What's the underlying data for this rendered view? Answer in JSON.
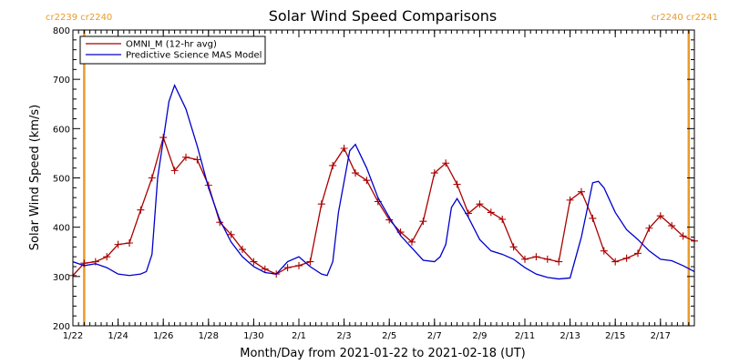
{
  "chart_data": {
    "type": "line",
    "title": "Solar Wind Speed Comparisons",
    "xlabel": "Month/Day from 2021-01-22 to 2021-02-18 (UT)",
    "ylabel": "Solar Wind Speed (km/s)",
    "ylim": [
      200,
      800
    ],
    "yticks": [
      200,
      300,
      400,
      500,
      600,
      700,
      800
    ],
    "xlim": [
      "2021-01-22",
      "2021-02-18 12:00"
    ],
    "xticks": [
      {
        "date": "2021-01-22",
        "label": "1/22"
      },
      {
        "date": "2021-01-24",
        "label": "1/24"
      },
      {
        "date": "2021-01-26",
        "label": "1/26"
      },
      {
        "date": "2021-01-28",
        "label": "1/28"
      },
      {
        "date": "2021-01-30",
        "label": "1/30"
      },
      {
        "date": "2021-02-01",
        "label": "2/1"
      },
      {
        "date": "2021-02-03",
        "label": "2/3"
      },
      {
        "date": "2021-02-05",
        "label": "2/5"
      },
      {
        "date": "2021-02-07",
        "label": "2/7"
      },
      {
        "date": "2021-02-09",
        "label": "2/9"
      },
      {
        "date": "2021-02-11",
        "label": "2/11"
      },
      {
        "date": "2021-02-13",
        "label": "2/13"
      },
      {
        "date": "2021-02-15",
        "label": "2/15"
      },
      {
        "date": "2021-02-17",
        "label": "2/17"
      }
    ],
    "legend_position": "top-left",
    "carrington_markers": [
      {
        "date": "2021-01-22 12:00",
        "label": "cr2239 cr2240",
        "side": "left"
      },
      {
        "date": "2021-02-18 06:00",
        "label": "cr2240 cr2241",
        "side": "right"
      }
    ],
    "series": [
      {
        "name": "OMNI_M (12-hr avg)",
        "color": "#aa0000",
        "marker": "plus",
        "points": [
          [
            "2021-01-22 00:00",
            302
          ],
          [
            "2021-01-22 12:00",
            327
          ],
          [
            "2021-01-23 00:00",
            330
          ],
          [
            "2021-01-23 12:00",
            340
          ],
          [
            "2021-01-24 00:00",
            365
          ],
          [
            "2021-01-24 12:00",
            368
          ],
          [
            "2021-01-25 00:00",
            435
          ],
          [
            "2021-01-25 12:00",
            500
          ],
          [
            "2021-01-26 00:00",
            582
          ],
          [
            "2021-01-26 12:00",
            515
          ],
          [
            "2021-01-27 00:00",
            542
          ],
          [
            "2021-01-27 12:00",
            537
          ],
          [
            "2021-01-28 00:00",
            485
          ],
          [
            "2021-01-28 12:00",
            410
          ],
          [
            "2021-01-29 00:00",
            385
          ],
          [
            "2021-01-29 12:00",
            355
          ],
          [
            "2021-01-30 00:00",
            330
          ],
          [
            "2021-01-30 12:00",
            315
          ],
          [
            "2021-01-31 00:00",
            305
          ],
          [
            "2021-01-31 12:00",
            318
          ],
          [
            "2021-02-01 00:00",
            322
          ],
          [
            "2021-02-01 12:00",
            330
          ],
          [
            "2021-02-02 00:00",
            447
          ],
          [
            "2021-02-02 12:00",
            525
          ],
          [
            "2021-02-03 00:00",
            560
          ],
          [
            "2021-02-03 12:00",
            510
          ],
          [
            "2021-02-04 00:00",
            495
          ],
          [
            "2021-02-04 12:00",
            452
          ],
          [
            "2021-02-05 00:00",
            415
          ],
          [
            "2021-02-05 12:00",
            390
          ],
          [
            "2021-02-06 00:00",
            370
          ],
          [
            "2021-02-06 12:00",
            412
          ],
          [
            "2021-02-07 00:00",
            510
          ],
          [
            "2021-02-07 12:00",
            530
          ],
          [
            "2021-02-08 00:00",
            487
          ],
          [
            "2021-02-08 12:00",
            428
          ],
          [
            "2021-02-09 00:00",
            447
          ],
          [
            "2021-02-09 12:00",
            430
          ],
          [
            "2021-02-10 00:00",
            416
          ],
          [
            "2021-02-10 12:00",
            360
          ],
          [
            "2021-02-11 00:00",
            335
          ],
          [
            "2021-02-11 12:00",
            340
          ],
          [
            "2021-02-12 00:00",
            335
          ],
          [
            "2021-02-12 12:00",
            330
          ],
          [
            "2021-02-13 00:00",
            455
          ],
          [
            "2021-02-13 12:00",
            472
          ],
          [
            "2021-02-14 00:00",
            418
          ],
          [
            "2021-02-14 12:00",
            352
          ],
          [
            "2021-02-15 00:00",
            330
          ],
          [
            "2021-02-15 12:00",
            337
          ],
          [
            "2021-02-16 00:00",
            347
          ],
          [
            "2021-02-16 12:00",
            398
          ],
          [
            "2021-02-17 00:00",
            423
          ],
          [
            "2021-02-17 12:00",
            403
          ],
          [
            "2021-02-18 00:00",
            382
          ],
          [
            "2021-02-18 12:00",
            372
          ]
        ]
      },
      {
        "name": "Predictive Science MAS Model",
        "color": "#0000cc",
        "marker": "none",
        "points": [
          [
            "2021-01-22 00:00",
            330
          ],
          [
            "2021-01-22 12:00",
            322
          ],
          [
            "2021-01-23 00:00",
            326
          ],
          [
            "2021-01-23 12:00",
            318
          ],
          [
            "2021-01-24 00:00",
            305
          ],
          [
            "2021-01-24 12:00",
            302
          ],
          [
            "2021-01-25 00:00",
            305
          ],
          [
            "2021-01-25 06:00",
            310
          ],
          [
            "2021-01-25 12:00",
            345
          ],
          [
            "2021-01-25 18:00",
            500
          ],
          [
            "2021-01-26 06:00",
            655
          ],
          [
            "2021-01-26 12:00",
            688
          ],
          [
            "2021-01-27 00:00",
            640
          ],
          [
            "2021-01-27 12:00",
            565
          ],
          [
            "2021-01-28 00:00",
            480
          ],
          [
            "2021-01-28 12:00",
            415
          ],
          [
            "2021-01-29 00:00",
            370
          ],
          [
            "2021-01-29 12:00",
            340
          ],
          [
            "2021-01-30 00:00",
            320
          ],
          [
            "2021-01-30 12:00",
            308
          ],
          [
            "2021-01-31 00:00",
            305
          ],
          [
            "2021-01-31 12:00",
            330
          ],
          [
            "2021-02-01 00:00",
            340
          ],
          [
            "2021-02-01 12:00",
            320
          ],
          [
            "2021-02-02 00:00",
            305
          ],
          [
            "2021-02-02 06:00",
            302
          ],
          [
            "2021-02-02 12:00",
            330
          ],
          [
            "2021-02-02 18:00",
            430
          ],
          [
            "2021-02-03 06:00",
            555
          ],
          [
            "2021-02-03 12:00",
            568
          ],
          [
            "2021-02-04 00:00",
            520
          ],
          [
            "2021-02-04 12:00",
            460
          ],
          [
            "2021-02-05 00:00",
            420
          ],
          [
            "2021-02-05 12:00",
            383
          ],
          [
            "2021-02-06 00:00",
            358
          ],
          [
            "2021-02-06 12:00",
            333
          ],
          [
            "2021-02-07 00:00",
            330
          ],
          [
            "2021-02-07 06:00",
            340
          ],
          [
            "2021-02-07 12:00",
            365
          ],
          [
            "2021-02-07 18:00",
            440
          ],
          [
            "2021-02-08 00:00",
            458
          ],
          [
            "2021-02-08 12:00",
            420
          ],
          [
            "2021-02-09 00:00",
            375
          ],
          [
            "2021-02-09 12:00",
            352
          ],
          [
            "2021-02-10 00:00",
            345
          ],
          [
            "2021-02-10 12:00",
            335
          ],
          [
            "2021-02-11 00:00",
            318
          ],
          [
            "2021-02-11 12:00",
            305
          ],
          [
            "2021-02-12 00:00",
            298
          ],
          [
            "2021-02-12 12:00",
            295
          ],
          [
            "2021-02-13 00:00",
            297
          ],
          [
            "2021-02-13 12:00",
            380
          ],
          [
            "2021-02-14 00:00",
            490
          ],
          [
            "2021-02-14 06:00",
            493
          ],
          [
            "2021-02-14 12:00",
            480
          ],
          [
            "2021-02-15 00:00",
            430
          ],
          [
            "2021-02-15 12:00",
            395
          ],
          [
            "2021-02-16 00:00",
            375
          ],
          [
            "2021-02-16 12:00",
            352
          ],
          [
            "2021-02-17 00:00",
            335
          ],
          [
            "2021-02-17 12:00",
            332
          ],
          [
            "2021-02-18 00:00",
            322
          ],
          [
            "2021-02-18 12:00",
            310
          ]
        ]
      }
    ]
  },
  "colors": {
    "carrington_marker": "#e89a2a",
    "axis": "#000000",
    "background": "#ffffff"
  }
}
